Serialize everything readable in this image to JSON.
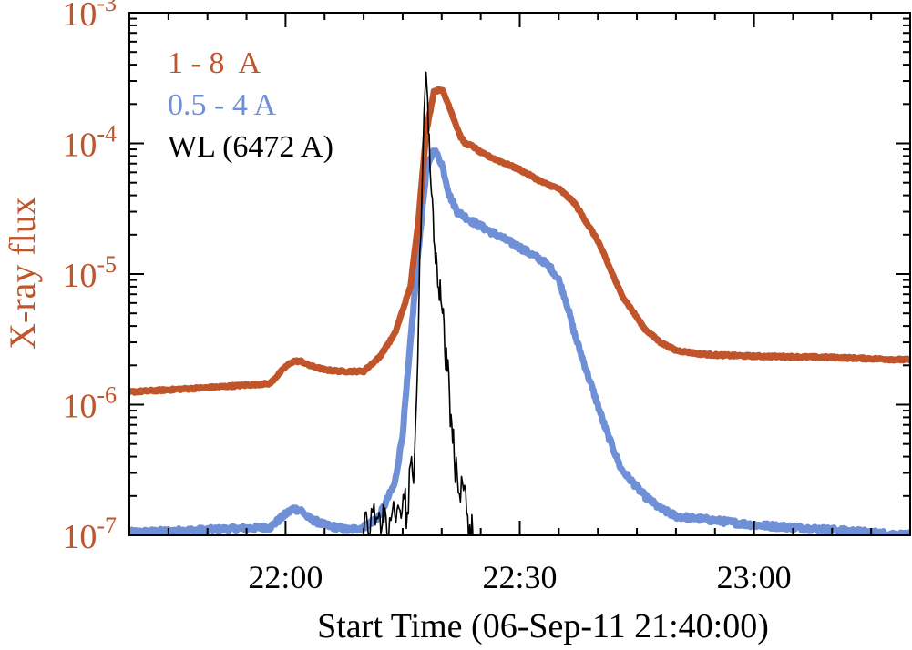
{
  "chart_data": {
    "type": "line",
    "title": "",
    "xlabel": "Start Time (06-Sep-11 21:40:00)",
    "ylabel": "X-ray flux",
    "yscale": "log",
    "x_unit": "minutes since 21:40:00",
    "xlim": [
      0,
      100
    ],
    "ylim": [
      1e-07,
      0.001
    ],
    "x_ticks": [
      {
        "value": 20,
        "label": "22:00"
      },
      {
        "value": 50,
        "label": "22:30"
      },
      {
        "value": 80,
        "label": "23:00"
      }
    ],
    "y_ticks": [
      {
        "exp": "-7",
        "value": 1e-07
      },
      {
        "exp": "-6",
        "value": 1e-06
      },
      {
        "exp": "-5",
        "value": 1e-05
      },
      {
        "exp": "-4",
        "value": 0.0001
      },
      {
        "exp": "-3",
        "value": 0.001
      }
    ],
    "y_tick_base": "10",
    "legend_position": "top-left",
    "colors": {
      "axis_ylabel": "#c0542a",
      "series_1_8": "#c0542a",
      "series_05_4": "#6f8fd6",
      "series_wl": "#000000",
      "frame": "#000000"
    },
    "series": [
      {
        "name": "1 - 8  A",
        "color": "#c0542a",
        "x": [
          0,
          10,
          18,
          20,
          21,
          22,
          23,
          25,
          27,
          30,
          32,
          34,
          36,
          37,
          38,
          39,
          40,
          41,
          42,
          42.5,
          43,
          44,
          45,
          47,
          50,
          53,
          55,
          57,
          60,
          63,
          66,
          68,
          70,
          73,
          75,
          80,
          90,
          100
        ],
        "y": [
          1.25e-06,
          1.35e-06,
          1.45e-06,
          1.95e-06,
          2.15e-06,
          2.15e-06,
          2e-06,
          1.85e-06,
          1.8e-06,
          1.8e-06,
          2.3e-06,
          3.5e-06,
          8e-06,
          2.5e-05,
          0.00012,
          0.00025,
          0.00026,
          0.00019,
          0.00013,
          0.00011,
          0.0001,
          9.5e-05,
          8.5e-05,
          7.5e-05,
          6.3e-05,
          5e-05,
          4.5e-05,
          3.5e-05,
          1.8e-05,
          7e-06,
          3.8e-06,
          3e-06,
          2.6e-06,
          2.45e-06,
          2.4e-06,
          2.35e-06,
          2.3e-06,
          2.2e-06
        ]
      },
      {
        "name": "0.5 - 4 A",
        "color": "#6f8fd6",
        "x": [
          0,
          10,
          18,
          20,
          21,
          22,
          23,
          25,
          28,
          30,
          32,
          34,
          35,
          36,
          37,
          38,
          39,
          40,
          41,
          42,
          44,
          47,
          50,
          53,
          54,
          55,
          56,
          57,
          59,
          61,
          63,
          66,
          68,
          70,
          75,
          80,
          90,
          100
        ],
        "y": [
          1.05e-07,
          1.1e-07,
          1.15e-07,
          1.45e-07,
          1.6e-07,
          1.55e-07,
          1.35e-07,
          1.2e-07,
          1.1e-07,
          1.15e-07,
          1.4e-07,
          2.5e-07,
          6e-07,
          3e-06,
          1.5e-05,
          6e-05,
          9e-05,
          7e-05,
          4e-05,
          3e-05,
          2.5e-05,
          2e-05,
          1.6e-05,
          1.25e-05,
          1.1e-05,
          9e-06,
          6e-06,
          3.5e-06,
          1.5e-06,
          6.5e-07,
          3.2e-07,
          2e-07,
          1.6e-07,
          1.4e-07,
          1.3e-07,
          1.2e-07,
          1.1e-07,
          1e-07
        ]
      },
      {
        "name": "WL (6472 A)",
        "color": "#000000",
        "x": [
          30,
          30.5,
          31,
          31.5,
          32,
          32.3,
          32.6,
          33,
          33.5,
          34,
          34.4,
          34.8,
          35.2,
          35.6,
          36,
          36.4,
          36.8,
          37.2,
          37.6,
          38,
          38.3,
          38.6,
          38.9,
          39.2,
          39.5,
          39.8,
          40.1,
          40.4,
          40.7,
          41,
          41.3,
          41.6,
          42,
          42.4,
          42.8,
          43.2,
          43.6,
          44
        ],
        "y": [
          1e-07,
          1.2e-07,
          1.6e-07,
          1.2e-07,
          1.5e-07,
          1.1e-07,
          1.25e-07,
          1e-07,
          1.3e-07,
          1.4e-07,
          1.7e-07,
          1.35e-07,
          1.9e-07,
          1.5e-07,
          3.5e-07,
          2.5e-07,
          1.2e-06,
          1.5e-05,
          8e-05,
          0.00035,
          0.00012,
          5e-05,
          3e-05,
          1.2e-05,
          8e-06,
          9e-06,
          5e-06,
          2.5e-06,
          1.8e-06,
          1.2e-06,
          7e-07,
          4e-07,
          2.8e-07,
          1.8e-07,
          2.2e-07,
          1.5e-07,
          1.2e-07,
          1e-07
        ]
      }
    ]
  }
}
